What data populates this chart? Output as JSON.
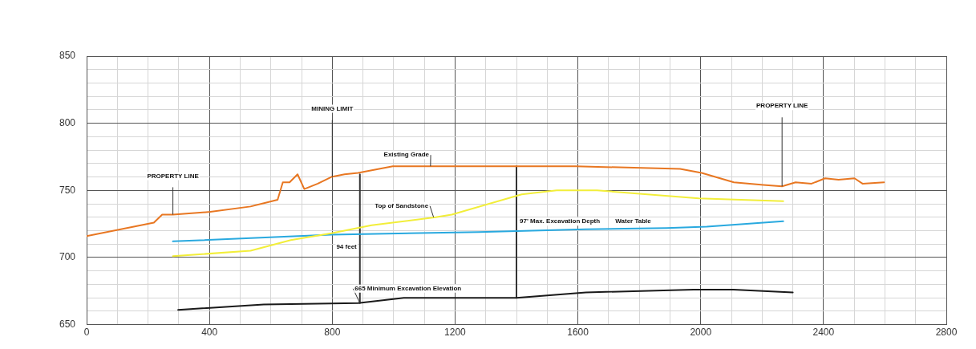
{
  "chart_data": {
    "type": "line",
    "xlim": [
      0,
      2800
    ],
    "ylim": [
      650,
      850
    ],
    "xticks": [
      0,
      {
        "value": 100,
        "label": null
      },
      {
        "value": 200,
        "label": null
      },
      {
        "value": 300,
        "label": null
      },
      400,
      {
        "value": 500,
        "label": null
      },
      {
        "value": 600,
        "label": null
      },
      {
        "value": 700,
        "label": null
      },
      800,
      {
        "value": 900,
        "label": null
      },
      {
        "value": 1000,
        "label": null
      },
      {
        "value": 1100,
        "label": null
      },
      1200,
      {
        "value": 1300,
        "label": null
      },
      {
        "value": 1400,
        "label": null
      },
      {
        "value": 1500,
        "label": null
      },
      1600,
      {
        "value": 1700,
        "label": null
      },
      {
        "value": 1800,
        "label": null
      },
      {
        "value": 1900,
        "label": null
      },
      2000,
      {
        "value": 2100,
        "label": null
      },
      {
        "value": 2200,
        "label": null
      },
      {
        "value": 2300,
        "label": null
      },
      2400,
      {
        "value": 2500,
        "label": null
      },
      {
        "value": 2600,
        "label": null
      },
      {
        "value": 2700,
        "label": null
      },
      2800
    ],
    "yticks": [
      650,
      {
        "value": 660,
        "label": null
      },
      {
        "value": 670,
        "label": null
      },
      {
        "value": 680,
        "label": null
      },
      {
        "value": 690,
        "label": null
      },
      700,
      {
        "value": 710,
        "label": null
      },
      {
        "value": 720,
        "label": null
      },
      {
        "value": 730,
        "label": null
      },
      {
        "value": 740,
        "label": null
      },
      750,
      {
        "value": 760,
        "label": null
      },
      {
        "value": 770,
        "label": null
      },
      {
        "value": 780,
        "label": null
      },
      {
        "value": 790,
        "label": null
      },
      800,
      {
        "value": 810,
        "label": null
      },
      {
        "value": 820,
        "label": null
      },
      {
        "value": 830,
        "label": null
      },
      {
        "value": 840,
        "label": null
      },
      850
    ],
    "grid": true,
    "legend": false,
    "marker": "none",
    "line_style": "solid",
    "series": [
      {
        "color": "#e87722",
        "x": [
          0,
          219,
          246,
          281,
          403,
          534,
          622,
          639,
          661,
          687,
          709,
          753,
          797,
          840,
          884,
          997,
          1102,
          1592,
          1933,
          2003,
          2108,
          2204,
          2265,
          2309,
          2361,
          2405,
          2449,
          2501,
          2527,
          2597
        ],
        "values": [
          716,
          726,
          732,
          732,
          734,
          738,
          743,
          756,
          756,
          762,
          751,
          755,
          760,
          762,
          763,
          768,
          768,
          768,
          766,
          763,
          756,
          754,
          753,
          756,
          755,
          759,
          758,
          759,
          755,
          756
        ]
      },
      {
        "color": "#f2ee3a",
        "x": [
          281,
          534,
          665,
          797,
          928,
          1137,
          1189,
          1417,
          1531,
          1662,
          1994,
          2269
        ],
        "values": [
          701,
          705,
          713,
          718,
          724,
          730,
          732,
          747,
          750,
          750,
          744,
          742
        ]
      },
      {
        "color": "#29a9df",
        "x": [
          281,
          797,
          1277,
          1626,
          1889,
          2020,
          2269
        ],
        "values": [
          712,
          717,
          719,
          721,
          722,
          723,
          727
        ]
      },
      {
        "color": "#1a1a1a",
        "x": [
          298,
          577,
          885,
          1033,
          1225,
          1400,
          1626,
          1976,
          2107,
          2300
        ],
        "values": [
          661,
          665,
          666,
          670,
          670,
          670,
          674,
          676,
          676,
          674
        ]
      },
      {
        "color": "#333333",
        "x": [
          890,
          890
        ],
        "values": [
          762,
          666
        ]
      },
      {
        "color": "#333333",
        "x": [
          1400,
          1400
        ],
        "values": [
          768,
          670
        ]
      }
    ],
    "annotations": [
      {
        "text": "PROPERTY LINE",
        "x": 281,
        "y": 732
      },
      {
        "text": "MINING LIMIT",
        "x": 800,
        "y": 760
      },
      {
        "text": "Existing Grade",
        "x": 1120,
        "y": 768
      },
      {
        "text": "Top of Sandstone",
        "x": 1130,
        "y": 730
      },
      {
        "text": "94 feet",
        "x": 890,
        "y": 714
      },
      {
        "text": "97' Max. Excavation Depth",
        "x": 1400,
        "y": 722
      },
      {
        "text": "Water Table",
        "x": 1780,
        "y": 722
      },
      {
        "text": "665 Minimum Excavation Elevation",
        "x": 890,
        "y": 666
      },
      {
        "text": "PROPERTY LINE",
        "x": 2265,
        "y": 753
      }
    ]
  }
}
